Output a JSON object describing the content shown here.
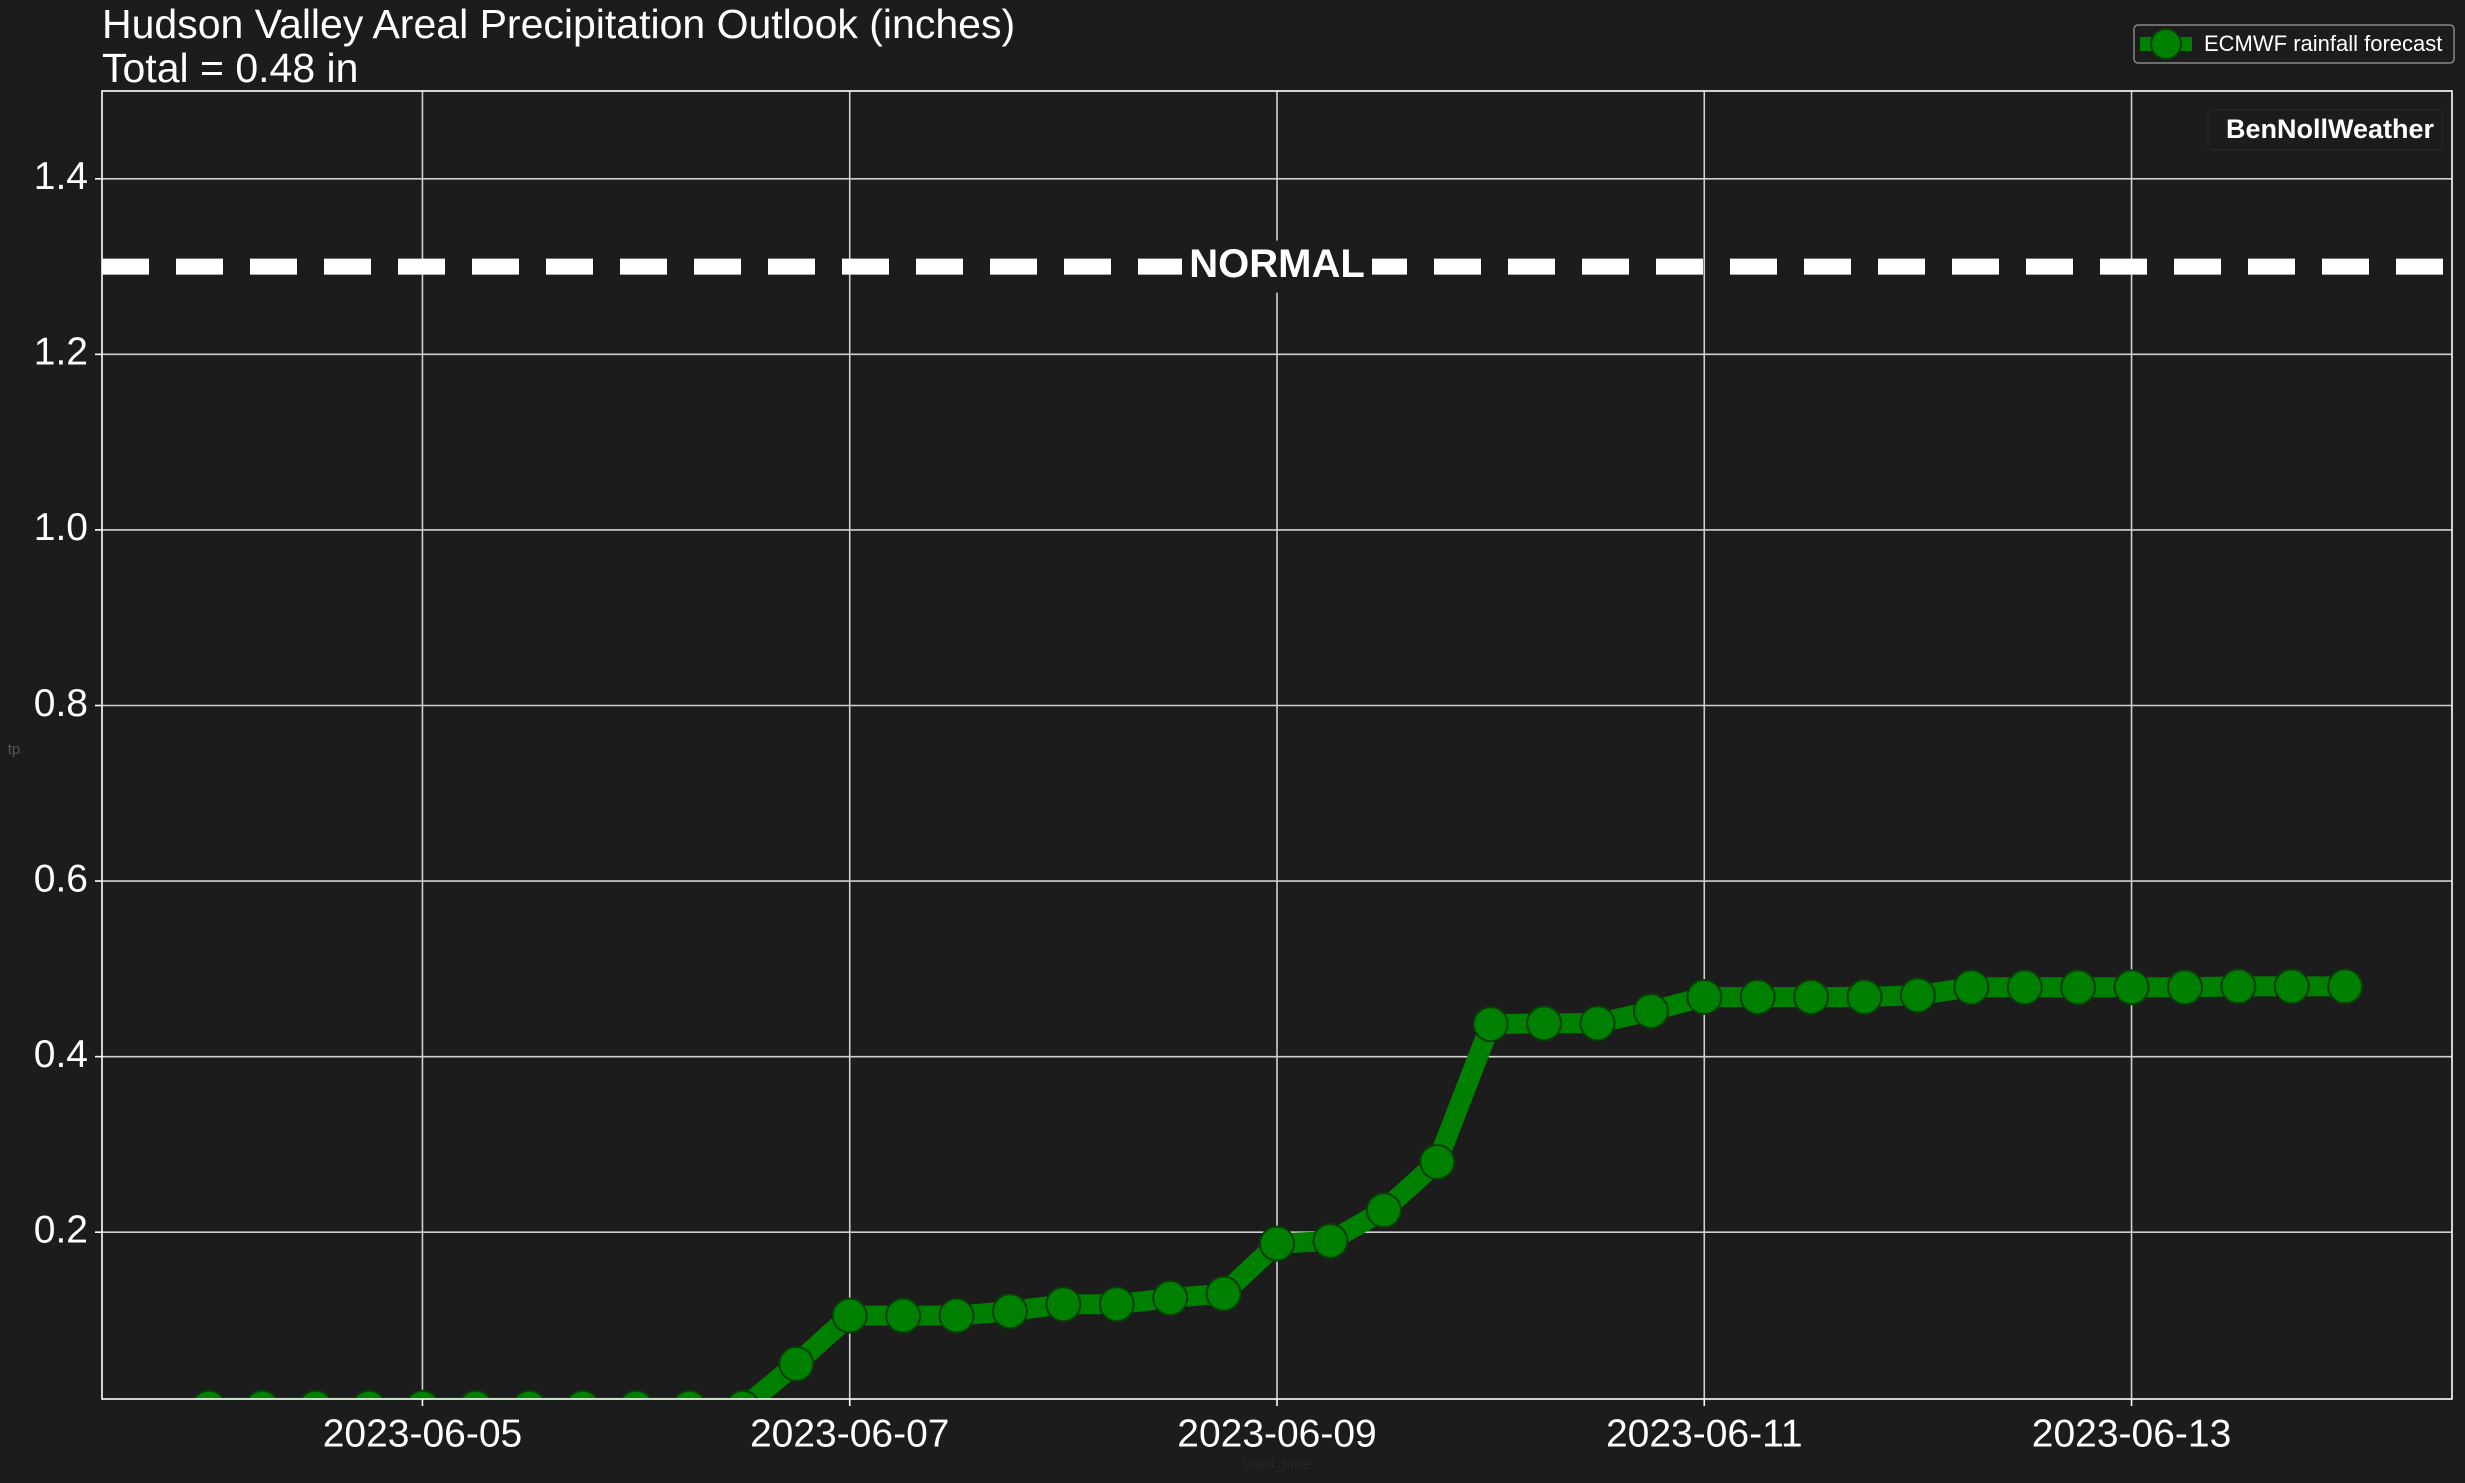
{
  "chart_data": {
    "type": "line",
    "title": "Hudson Valley Areal Precipitation Outlook (inches)",
    "subtitle": "Total = 0.48 in",
    "x_label": "valid_time",
    "y_label": "tp",
    "watermark": "BenNollWeather",
    "x": [
      "2023-06-04T00:00",
      "2023-06-04T06:00",
      "2023-06-04T12:00",
      "2023-06-04T18:00",
      "2023-06-05T00:00",
      "2023-06-05T06:00",
      "2023-06-05T12:00",
      "2023-06-05T18:00",
      "2023-06-06T00:00",
      "2023-06-06T06:00",
      "2023-06-06T12:00",
      "2023-06-06T18:00",
      "2023-06-07T00:00",
      "2023-06-07T06:00",
      "2023-06-07T12:00",
      "2023-06-07T18:00",
      "2023-06-08T00:00",
      "2023-06-08T06:00",
      "2023-06-08T12:00",
      "2023-06-08T18:00",
      "2023-06-09T00:00",
      "2023-06-09T06:00",
      "2023-06-09T12:00",
      "2023-06-09T18:00",
      "2023-06-10T00:00",
      "2023-06-10T06:00",
      "2023-06-10T12:00",
      "2023-06-10T18:00",
      "2023-06-11T00:00",
      "2023-06-11T06:00",
      "2023-06-11T12:00",
      "2023-06-11T18:00",
      "2023-06-12T00:00",
      "2023-06-12T06:00",
      "2023-06-12T12:00",
      "2023-06-12T18:00",
      "2023-06-13T00:00",
      "2023-06-13T06:00",
      "2023-06-13T12:00",
      "2023-06-13T18:00",
      "2023-06-14T00:00"
    ],
    "series": [
      {
        "name": "ECMWF rainfall forecast",
        "color": "#008000",
        "values": [
          0,
          0,
          0,
          0,
          0,
          0,
          0,
          0,
          0,
          0,
          0,
          0.05,
          0.105,
          0.105,
          0.105,
          0.11,
          0.118,
          0.118,
          0.125,
          0.13,
          0.187,
          0.19,
          0.225,
          0.28,
          0.437,
          0.438,
          0.438,
          0.452,
          0.468,
          0.468,
          0.468,
          0.468,
          0.47,
          0.479,
          0.479,
          0.479,
          0.479,
          0.479,
          0.48,
          0.48,
          0.48
        ]
      }
    ],
    "normal": {
      "value": 1.3,
      "label": "NORMAL"
    },
    "xlim": [
      "2023-06-03T12:00",
      "2023-06-14T12:00"
    ],
    "xticks": [
      "2023-06-05",
      "2023-06-07",
      "2023-06-09",
      "2023-06-11",
      "2023-06-13"
    ],
    "ylim": [
      0.01,
      1.5
    ],
    "yticks": [
      0.2,
      0.4,
      0.6,
      0.8,
      {
        "value": 1,
        "label": "1.0"
      },
      1.2,
      1.4
    ],
    "grid": true,
    "legend": "upper right"
  }
}
